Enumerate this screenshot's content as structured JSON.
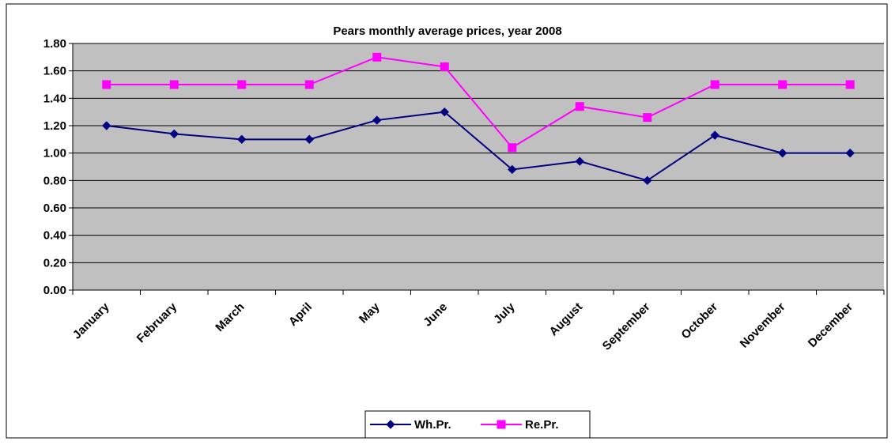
{
  "chart_data": {
    "type": "line",
    "title": "Pears monthly average prices, year 2008",
    "categories": [
      "January",
      "February",
      "March",
      "April",
      "May",
      "June",
      "July",
      "August",
      "September",
      "October",
      "November",
      "December"
    ],
    "series": [
      {
        "name": "Wh.Pr.",
        "color": "#000080",
        "marker": "diamond",
        "values": [
          1.2,
          1.14,
          1.1,
          1.1,
          1.24,
          1.3,
          0.88,
          0.94,
          0.8,
          1.13,
          1.0,
          1.0
        ]
      },
      {
        "name": "Re.Pr.",
        "color": "#ff00ff",
        "marker": "square",
        "values": [
          1.5,
          1.5,
          1.5,
          1.5,
          1.7,
          1.63,
          1.04,
          1.34,
          1.26,
          1.5,
          1.5,
          1.5
        ]
      }
    ],
    "ylim": [
      0,
      1.8
    ],
    "yticks": [
      {
        "value": 0,
        "label": "0.00"
      },
      {
        "value": 0.2,
        "label": "0.20"
      },
      {
        "value": 0.4,
        "label": "0.40"
      },
      {
        "value": 0.6,
        "label": "0.60"
      },
      {
        "value": 0.8,
        "label": "0.80"
      },
      {
        "value": 1.0,
        "label": "1.00"
      },
      {
        "value": 1.2,
        "label": "1.20"
      },
      {
        "value": 1.4,
        "label": "1.40"
      },
      {
        "value": 1.6,
        "label": "1.60"
      },
      {
        "value": 1.8,
        "label": "1.80"
      }
    ],
    "grid": true,
    "legend": "bottom"
  }
}
